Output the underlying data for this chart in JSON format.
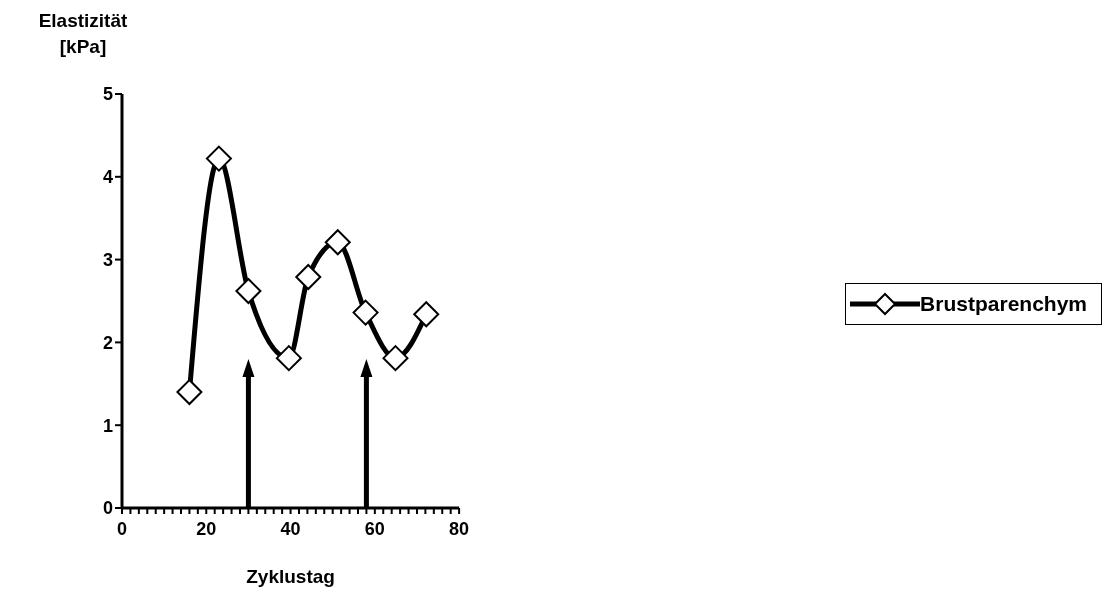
{
  "chart_data": {
    "type": "line",
    "xlabel": "Zyklustag",
    "ylabel": "Elastizität [kPa]",
    "x": [
      16,
      23,
      30,
      39.6,
      44.2,
      51.2,
      57.8,
      64.9,
      72.2
    ],
    "series": [
      {
        "name": "Brustparenchym",
        "color": "#000000",
        "values": [
          1.4,
          4.22,
          2.62,
          1.81,
          2.79,
          3.21,
          2.36,
          1.81,
          2.34
        ]
      }
    ],
    "xlim": [
      0,
      80
    ],
    "xticks": [
      0,
      {
        "value": 2,
        "label": null
      },
      {
        "value": 4,
        "label": null
      },
      {
        "value": 6,
        "label": null
      },
      {
        "value": 8,
        "label": null
      },
      {
        "value": 10,
        "label": null
      },
      {
        "value": 12,
        "label": null
      },
      {
        "value": 14,
        "label": null
      },
      {
        "value": 16,
        "label": null
      },
      {
        "value": 18,
        "label": null
      },
      20,
      {
        "value": 22,
        "label": null
      },
      {
        "value": 24,
        "label": null
      },
      {
        "value": 26,
        "label": null
      },
      {
        "value": 28,
        "label": null
      },
      {
        "value": 30,
        "label": null
      },
      {
        "value": 32,
        "label": null
      },
      {
        "value": 34,
        "label": null
      },
      {
        "value": 36,
        "label": null
      },
      {
        "value": 38,
        "label": null
      },
      40,
      {
        "value": 42,
        "label": null
      },
      {
        "value": 44,
        "label": null
      },
      {
        "value": 46,
        "label": null
      },
      {
        "value": 48,
        "label": null
      },
      {
        "value": 50,
        "label": null
      },
      {
        "value": 52,
        "label": null
      },
      {
        "value": 54,
        "label": null
      },
      {
        "value": 56,
        "label": null
      },
      {
        "value": 58,
        "label": null
      },
      60,
      {
        "value": 62,
        "label": null
      },
      {
        "value": 64,
        "label": null
      },
      {
        "value": 66,
        "label": null
      },
      {
        "value": 68,
        "label": null
      },
      {
        "value": 70,
        "label": null
      },
      {
        "value": 72,
        "label": null
      },
      {
        "value": 74,
        "label": null
      },
      {
        "value": 76,
        "label": null
      },
      {
        "value": 78,
        "label": null
      },
      80
    ],
    "ylim": [
      0,
      5
    ],
    "yticks": [
      0,
      1,
      2,
      3,
      4,
      5
    ],
    "ref_lines": [
      {
        "axis": "x",
        "value": 30
      },
      {
        "axis": "x",
        "value": 58
      }
    ],
    "grid": false,
    "legend": "right",
    "marker": "diamond",
    "line_style": "solid"
  }
}
